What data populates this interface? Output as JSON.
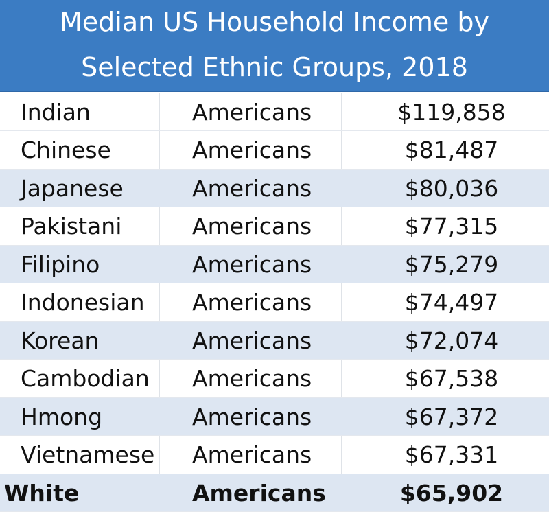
{
  "header": {
    "title_lines": [
      "Median US Household Income by",
      "Selected Ethnic Groups, 2018"
    ]
  },
  "table": {
    "rows": [
      [
        "Indian",
        "Americans",
        "$119,858"
      ],
      [
        "Chinese",
        "Americans",
        "$81,487"
      ],
      [
        "Japanese",
        "Americans",
        "$80,036"
      ],
      [
        "Pakistani",
        "Americans",
        "$77,315"
      ],
      [
        "Filipino",
        "Americans",
        "$75,279"
      ],
      [
        "Indonesian",
        "Americans",
        "$74,497"
      ],
      [
        "Korean",
        "Americans",
        "$72,074"
      ],
      [
        "Cambodian",
        "Americans",
        "$67,538"
      ],
      [
        "Hmong",
        "Americans",
        "$67,372"
      ],
      [
        "Vietnamese",
        "Americans",
        "$67,331"
      ],
      [
        "White",
        "Americans",
        "$65,902"
      ]
    ]
  }
}
